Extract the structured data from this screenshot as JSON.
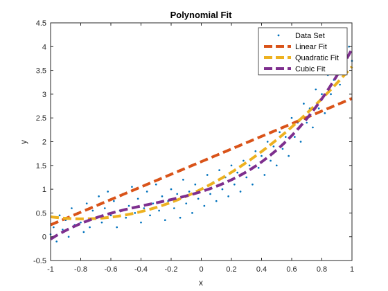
{
  "chart_data": {
    "type": "line",
    "title": "Polynomial Fit",
    "xlabel": "x",
    "ylabel": "y",
    "xlim": [
      -1,
      1
    ],
    "ylim": [
      -0.5,
      4.5
    ],
    "xticks": [
      "-1",
      "-0.8",
      "-0.6",
      "-0.4",
      "-0.2",
      "0",
      "0.2",
      "0.4",
      "0.6",
      "0.8",
      "1"
    ],
    "yticks": [
      "-0.5",
      "0",
      "0.5",
      "1",
      "1.5",
      "2",
      "2.5",
      "3",
      "3.5",
      "4",
      "4.5"
    ],
    "grid": false,
    "legend_position": "top-right",
    "series": [
      {
        "name": "Data Set",
        "type": "scatter",
        "color": "#0072BD",
        "approx_points": [
          [
            -1.0,
            0.05
          ],
          [
            -0.98,
            0.2
          ],
          [
            -0.96,
            -0.1
          ],
          [
            -0.94,
            0.45
          ],
          [
            -0.92,
            0.15
          ],
          [
            -0.9,
            0.35
          ],
          [
            -0.88,
            0.0
          ],
          [
            -0.86,
            0.6
          ],
          [
            -0.84,
            0.25
          ],
          [
            -0.82,
            0.5
          ],
          [
            -0.8,
            0.3
          ],
          [
            -0.78,
            0.1
          ],
          [
            -0.76,
            0.7
          ],
          [
            -0.74,
            0.2
          ],
          [
            -0.72,
            0.55
          ],
          [
            -0.7,
            0.4
          ],
          [
            -0.68,
            0.85
          ],
          [
            -0.66,
            0.3
          ],
          [
            -0.64,
            0.6
          ],
          [
            -0.62,
            0.95
          ],
          [
            -0.6,
            0.45
          ],
          [
            -0.58,
            0.75
          ],
          [
            -0.56,
            0.2
          ],
          [
            -0.54,
            0.55
          ],
          [
            -0.52,
            0.9
          ],
          [
            -0.5,
            0.4
          ],
          [
            -0.48,
            0.65
          ],
          [
            -0.46,
            1.05
          ],
          [
            -0.44,
            0.5
          ],
          [
            -0.42,
            0.8
          ],
          [
            -0.4,
            0.3
          ],
          [
            -0.38,
            0.6
          ],
          [
            -0.36,
            0.95
          ],
          [
            -0.34,
            0.45
          ],
          [
            -0.32,
            0.7
          ],
          [
            -0.3,
            1.1
          ],
          [
            -0.28,
            0.55
          ],
          [
            -0.26,
            0.85
          ],
          [
            -0.24,
            0.35
          ],
          [
            -0.22,
            0.75
          ],
          [
            -0.2,
            1.0
          ],
          [
            -0.18,
            0.6
          ],
          [
            -0.16,
            0.9
          ],
          [
            -0.14,
            0.4
          ],
          [
            -0.12,
            1.2
          ],
          [
            -0.1,
            0.7
          ],
          [
            -0.08,
            0.95
          ],
          [
            -0.06,
            0.5
          ],
          [
            -0.04,
            1.1
          ],
          [
            -0.02,
            0.8
          ],
          [
            0.0,
            1.0
          ],
          [
            0.02,
            0.65
          ],
          [
            0.04,
            1.3
          ],
          [
            0.06,
            0.9
          ],
          [
            0.08,
            1.15
          ],
          [
            0.1,
            0.75
          ],
          [
            0.12,
            1.4
          ],
          [
            0.14,
            1.0
          ],
          [
            0.16,
            1.25
          ],
          [
            0.18,
            0.85
          ],
          [
            0.2,
            1.5
          ],
          [
            0.22,
            1.1
          ],
          [
            0.24,
            1.35
          ],
          [
            0.26,
            0.95
          ],
          [
            0.28,
            1.6
          ],
          [
            0.3,
            1.25
          ],
          [
            0.32,
            1.5
          ],
          [
            0.34,
            1.1
          ],
          [
            0.36,
            1.8
          ],
          [
            0.38,
            1.45
          ],
          [
            0.4,
            1.7
          ],
          [
            0.42,
            1.3
          ],
          [
            0.44,
            2.0
          ],
          [
            0.46,
            1.6
          ],
          [
            0.48,
            1.9
          ],
          [
            0.5,
            1.5
          ],
          [
            0.52,
            2.2
          ],
          [
            0.54,
            1.85
          ],
          [
            0.56,
            2.1
          ],
          [
            0.58,
            1.7
          ],
          [
            0.6,
            2.5
          ],
          [
            0.62,
            2.1
          ],
          [
            0.64,
            2.4
          ],
          [
            0.66,
            2.0
          ],
          [
            0.68,
            2.8
          ],
          [
            0.7,
            2.4
          ],
          [
            0.72,
            2.7
          ],
          [
            0.74,
            2.3
          ],
          [
            0.76,
            3.1
          ],
          [
            0.78,
            2.7
          ],
          [
            0.8,
            3.0
          ],
          [
            0.82,
            2.6
          ],
          [
            0.84,
            3.4
          ],
          [
            0.86,
            3.0
          ],
          [
            0.88,
            3.3
          ],
          [
            0.9,
            3.6
          ],
          [
            0.92,
            3.2
          ],
          [
            0.94,
            3.8
          ],
          [
            0.96,
            3.5
          ],
          [
            0.98,
            4.0
          ],
          [
            1.0,
            3.7
          ]
        ]
      },
      {
        "name": "Linear Fit",
        "type": "line",
        "color": "#D95319",
        "style": "dashed",
        "coefficients": [
          1.33,
          1.58
        ]
      },
      {
        "name": "Quadratic Fit",
        "type": "line",
        "color": "#EDB120",
        "style": "dashed",
        "coefficients": [
          1.0,
          1.58,
          1.0
        ]
      },
      {
        "name": "Cubic Fit",
        "type": "line",
        "color": "#7E2F8E",
        "style": "dashed",
        "coefficients": [
          1.0,
          1.0,
          1.0,
          0.95
        ]
      }
    ]
  }
}
